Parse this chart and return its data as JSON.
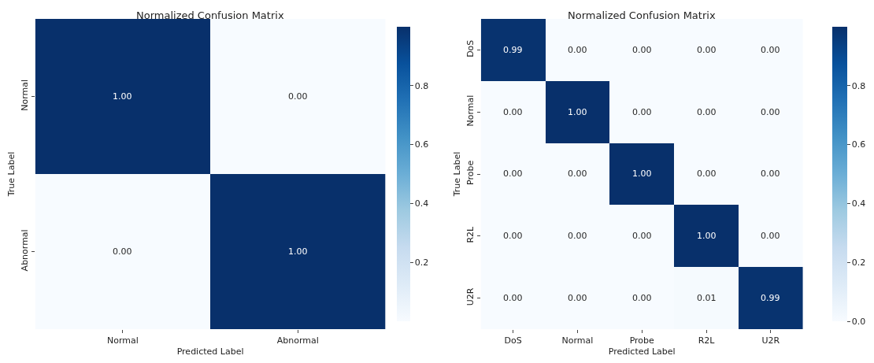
{
  "chart_data": [
    {
      "type": "heatmap",
      "title": "Normalized Confusion Matrix",
      "xlabel": "Predicted Label",
      "ylabel": "True Label",
      "categories": [
        "Normal",
        "Abnormal"
      ],
      "y_categories": [
        "Normal",
        "Abnormal"
      ],
      "cells": [
        [
          1.0,
          0.0
        ],
        [
          0.0,
          1.0
        ]
      ],
      "cell_labels": [
        [
          "1.00",
          "0.00"
        ],
        [
          "0.00",
          "1.00"
        ]
      ],
      "clim": [
        0.0,
        1.0
      ],
      "cticks": [
        0.2,
        0.4,
        0.6,
        0.8
      ]
    },
    {
      "type": "heatmap",
      "title": "Normalized Confusion Matrix",
      "xlabel": "Predicted Label",
      "ylabel": "True Label",
      "categories": [
        "DoS",
        "Normal",
        "Probe",
        "R2L",
        "U2R"
      ],
      "y_categories": [
        "DoS",
        "Normal",
        "Probe",
        "R2L",
        "U2R"
      ],
      "cells": [
        [
          0.99,
          0.0,
          0.0,
          0.0,
          0.0
        ],
        [
          0.0,
          1.0,
          0.0,
          0.0,
          0.0
        ],
        [
          0.0,
          0.0,
          1.0,
          0.0,
          0.0
        ],
        [
          0.0,
          0.0,
          0.0,
          1.0,
          0.0
        ],
        [
          0.0,
          0.0,
          0.0,
          0.01,
          0.99
        ]
      ],
      "cell_labels": [
        [
          "0.99",
          "0.00",
          "0.00",
          "0.00",
          "0.00"
        ],
        [
          "0.00",
          "1.00",
          "0.00",
          "0.00",
          "0.00"
        ],
        [
          "0.00",
          "0.00",
          "1.00",
          "0.00",
          "0.00"
        ],
        [
          "0.00",
          "0.00",
          "0.00",
          "1.00",
          "0.00"
        ],
        [
          "0.00",
          "0.00",
          "0.00",
          "0.01",
          "0.99"
        ]
      ],
      "clim": [
        0.0,
        1.0
      ],
      "cticks": [
        {
          "value": 0.0,
          "label": "0.0"
        },
        0.2,
        0.4,
        0.6,
        0.8
      ]
    }
  ]
}
